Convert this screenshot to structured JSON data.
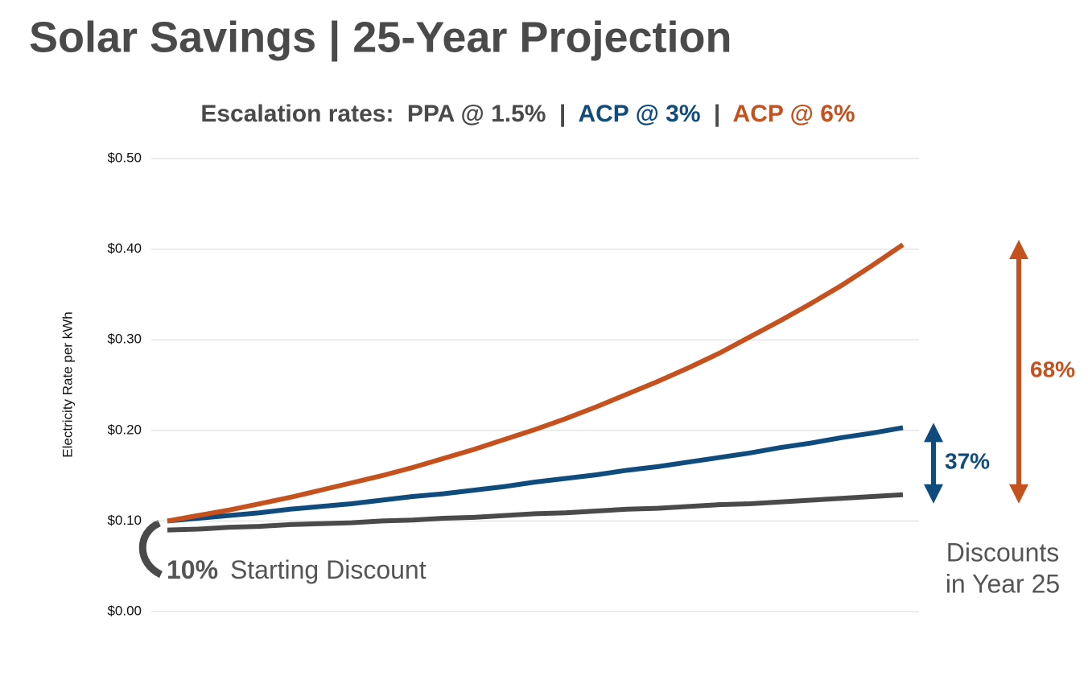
{
  "chart_data": {
    "type": "line",
    "title": "Solar Savings | 25-Year Projection",
    "subtitle_prefix": "Escalation rates:",
    "subtitle_separator": "|",
    "y_label": "Electricity Rate per kWh",
    "categories": [
      null,
      null,
      null,
      null,
      null,
      null,
      null,
      null,
      null,
      null,
      null,
      null,
      null,
      null,
      null,
      null,
      null,
      null,
      null,
      null,
      null,
      null,
      null,
      null,
      null
    ],
    "series": [
      {
        "name": "PPA @ 1.5%",
        "color": "#4a4a4a",
        "values": [
          0.09,
          0.091,
          0.093,
          0.094,
          0.096,
          0.097,
          0.098,
          0.1,
          0.101,
          0.103,
          0.104,
          0.106,
          0.108,
          0.109,
          0.111,
          0.113,
          0.114,
          0.116,
          0.118,
          0.119,
          0.121,
          0.123,
          0.125,
          0.127,
          0.129
        ]
      },
      {
        "name": "ACP @ 3%",
        "color": "#0f4c7d",
        "values": [
          0.1,
          0.103,
          0.106,
          0.109,
          0.113,
          0.116,
          0.119,
          0.123,
          0.127,
          0.13,
          0.134,
          0.138,
          0.143,
          0.147,
          0.151,
          0.156,
          0.16,
          0.165,
          0.17,
          0.175,
          0.181,
          0.186,
          0.192,
          0.197,
          0.203
        ]
      },
      {
        "name": "ACP @ 6%",
        "color": "#c5511f",
        "values": [
          0.1,
          0.106,
          0.112,
          0.119,
          0.126,
          0.134,
          0.142,
          0.15,
          0.159,
          0.169,
          0.179,
          0.19,
          0.201,
          0.213,
          0.226,
          0.24,
          0.254,
          0.269,
          0.285,
          0.303,
          0.321,
          0.34,
          0.36,
          0.382,
          0.405
        ]
      }
    ],
    "ylim": [
      0,
      0.5
    ],
    "yticks": [
      {
        "value": 0,
        "label": "$0.00"
      },
      {
        "value": 0.1,
        "label": "$0.10"
      },
      {
        "value": 0.2,
        "label": "$0.20"
      },
      {
        "value": 0.3,
        "label": "$0.30"
      },
      {
        "value": 0.4,
        "label": "$0.40"
      },
      {
        "value": 0.5,
        "label": "$0.50"
      }
    ],
    "grid": true,
    "annotations": {
      "start_discount_value": "10%",
      "start_discount_text": "Starting Discount",
      "year25_line1": "Discounts",
      "year25_line2": "in Year 25",
      "discount_acp3": "37%",
      "discount_acp6": "68%"
    }
  }
}
